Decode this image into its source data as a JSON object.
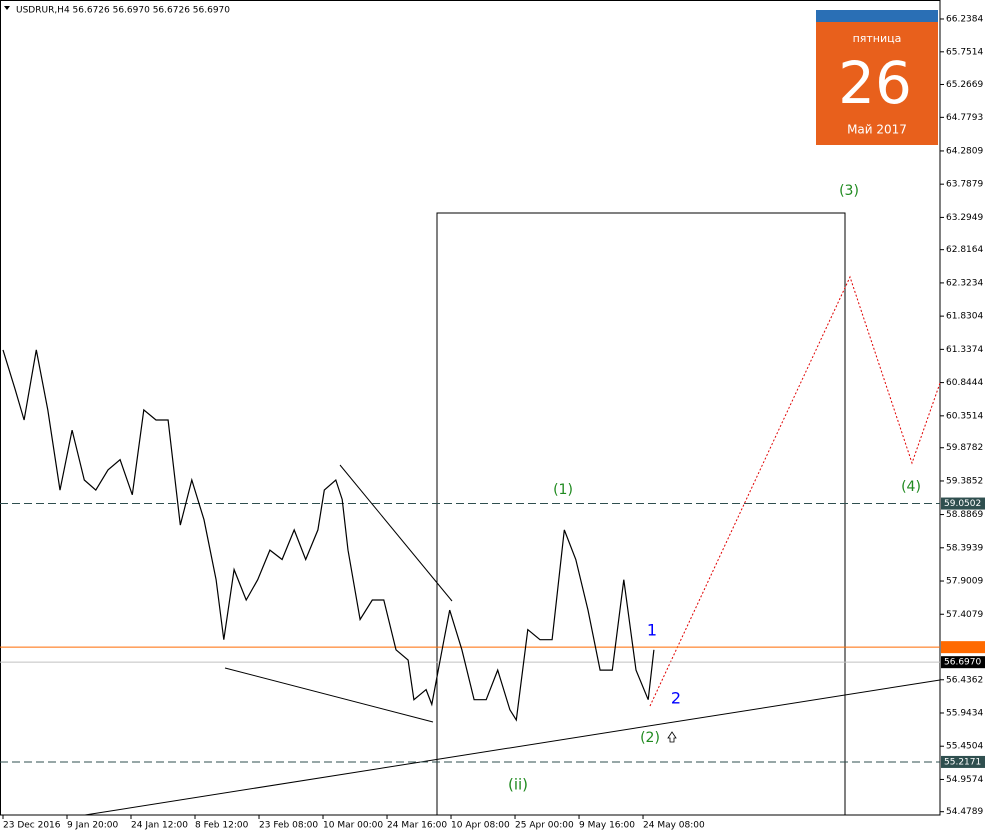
{
  "chart_data": {
    "type": "line",
    "title": "USDRUR,H4  56.6726 56.6970 56.6726 56.6970",
    "x": [
      0,
      0.19,
      0.33,
      0.52,
      0.7,
      0.89,
      1.08,
      1.27,
      1.45,
      1.64,
      1.83,
      2.02,
      2.2,
      2.39,
      2.58,
      2.77,
      2.95,
      3.14,
      3.33,
      3.45,
      3.61,
      3.8,
      3.98,
      4.17,
      4.36,
      4.55,
      4.73,
      4.92,
      5.02,
      5.2,
      5.3,
      5.39,
      5.58,
      5.77,
      5.95,
      6.14,
      6.33,
      6.42,
      6.61,
      6.7,
      6.89,
      6.98,
      7.17,
      7.36,
      7.55,
      7.73,
      7.92,
      8.02,
      8.2,
      8.39,
      8.58,
      8.77,
      8.95,
      9.14,
      9.33,
      9.52,
      9.7,
      9.89,
      10.08,
      10.17
    ],
    "series": [
      {
        "name": "USDRUR",
        "color": "#000000",
        "values": [
          61.33,
          60.74,
          60.29,
          61.33,
          60.44,
          59.25,
          60.14,
          59.4,
          59.25,
          59.55,
          59.7,
          59.18,
          60.44,
          60.29,
          60.29,
          58.73,
          59.4,
          58.81,
          57.92,
          57.03,
          58.07,
          57.62,
          57.92,
          58.36,
          58.22,
          58.66,
          58.22,
          58.66,
          59.25,
          59.4,
          59.11,
          58.36,
          57.33,
          57.62,
          57.62,
          56.88,
          56.73,
          56.14,
          56.29,
          56.07,
          57.03,
          57.47,
          56.88,
          56.14,
          56.14,
          56.58,
          55.99,
          55.84,
          57.18,
          57.03,
          57.03,
          58.66,
          58.22,
          57.47,
          56.58,
          56.58,
          57.92,
          56.58,
          56.14,
          56.88
        ]
      }
    ],
    "xlim": [
      -0.047,
      14.64
    ],
    "xticks": [
      {
        "value": 0,
        "label": "23 Dec 2016"
      },
      {
        "value": 1,
        "label": "9 Jan 20:00"
      },
      {
        "value": 2,
        "label": "24 Jan 12:00"
      },
      {
        "value": 3,
        "label": "8 Feb 12:00"
      },
      {
        "value": 4,
        "label": "23 Feb 08:00"
      },
      {
        "value": 5,
        "label": "10 Mar 00:00"
      },
      {
        "value": 6,
        "label": "24 Mar 16:00"
      },
      {
        "value": 7,
        "label": "10 Apr 08:00"
      },
      {
        "value": 8,
        "label": "25 Apr 00:00"
      },
      {
        "value": 9,
        "label": "9 May 16:00"
      },
      {
        "value": 10,
        "label": "24 May 08:00"
      }
    ],
    "ylim": [
      54.43,
      66.52
    ],
    "yticks": [
      66.2384,
      65.7514,
      65.2669,
      64.7793,
      64.2809,
      63.7879,
      63.2949,
      62.8164,
      62.3234,
      61.8304,
      61.3374,
      60.8444,
      60.3514,
      59.8782,
      59.3852,
      58.8869,
      58.3939,
      57.9009,
      57.4079,
      56.4362,
      55.9434,
      55.4504,
      54.9574,
      54.4789
    ],
    "levels": [
      {
        "value": 59.0502,
        "color": "#2f4f4f"
      },
      {
        "value": 55.2171,
        "color": "#2f4f4f"
      },
      {
        "value": 56.92,
        "color": "#ff6a00"
      }
    ],
    "current_price": {
      "value": 56.697,
      "label": "56.6970"
    },
    "annotations": [
      {
        "text": "(3)",
        "color": "#1f8a1f"
      },
      {
        "text": "(1)",
        "color": "#1f8a1f"
      },
      {
        "text": "(4)",
        "color": "#1f8a1f"
      },
      {
        "text": "1",
        "color": "#0000ff"
      },
      {
        "text": "2",
        "color": "#0000ff"
      },
      {
        "text": "(2)",
        "color": "#1f8a1f"
      },
      {
        "text": "(ii)",
        "color": "#1f8a1f"
      }
    ]
  },
  "calendar": {
    "weekday": "пятница",
    "day": "26",
    "month": "Май 2017"
  }
}
